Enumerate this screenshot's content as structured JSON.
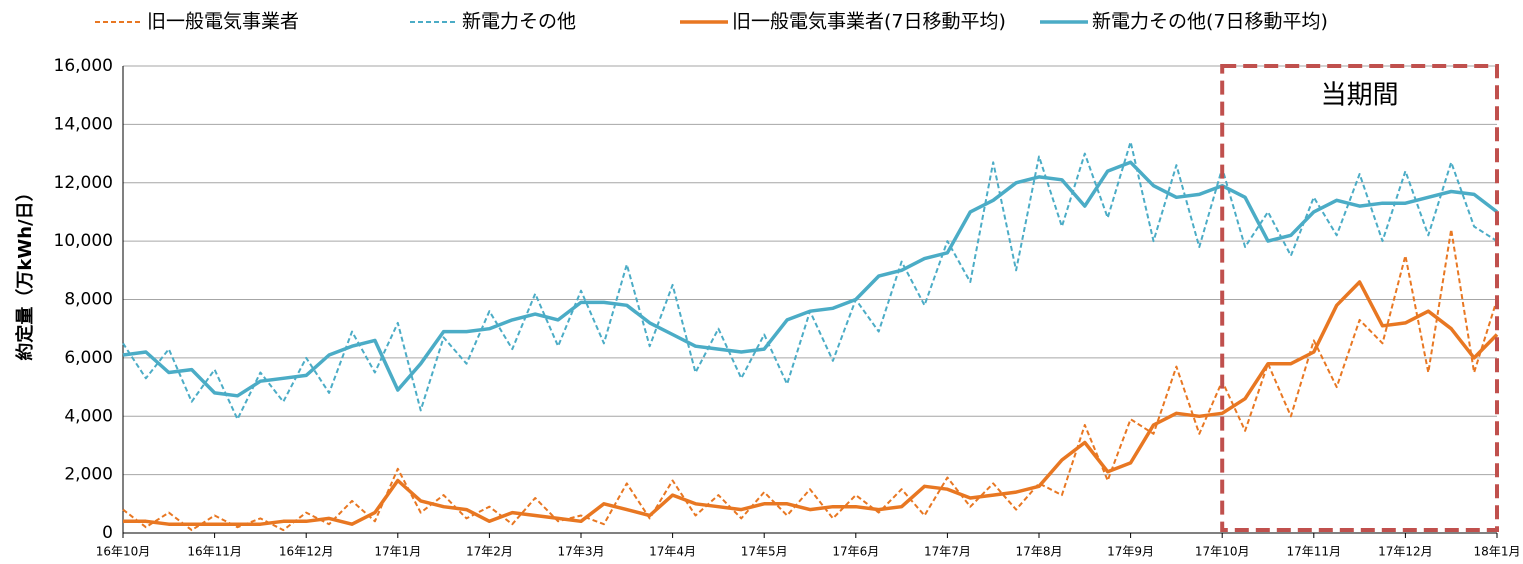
{
  "chart_data": {
    "type": "line",
    "y_label": "約定量（万kWh/日）",
    "xlim": [
      0,
      15
    ],
    "xticks": [
      {
        "value": 0,
        "label": "16年10月"
      },
      {
        "value": 1,
        "label": "16年11月"
      },
      {
        "value": 2,
        "label": "16年12月"
      },
      {
        "value": 3,
        "label": "17年1月"
      },
      {
        "value": 4,
        "label": "17年2月"
      },
      {
        "value": 5,
        "label": "17年3月"
      },
      {
        "value": 6,
        "label": "17年4月"
      },
      {
        "value": 7,
        "label": "17年5月"
      },
      {
        "value": 8,
        "label": "17年6月"
      },
      {
        "value": 9,
        "label": "17年7月"
      },
      {
        "value": 10,
        "label": "17年8月"
      },
      {
        "value": 11,
        "label": "17年9月"
      },
      {
        "value": 12,
        "label": "17年10月"
      },
      {
        "value": 13,
        "label": "17年11月"
      },
      {
        "value": 14,
        "label": "17年12月"
      },
      {
        "value": 15,
        "label": "18年1月"
      }
    ],
    "ylim": [
      0,
      16000
    ],
    "yticks": [
      {
        "value": 0,
        "label": "0"
      },
      {
        "value": 2000,
        "label": "2,000"
      },
      {
        "value": 4000,
        "label": "4,000"
      },
      {
        "value": 6000,
        "label": "6,000"
      },
      {
        "value": 8000,
        "label": "8,000"
      },
      {
        "value": 10000,
        "label": "10,000"
      },
      {
        "value": 12000,
        "label": "12,000"
      },
      {
        "value": 14000,
        "label": "14,000"
      },
      {
        "value": 16000,
        "label": "16,000"
      }
    ],
    "grid": true,
    "legend": "top",
    "highlight": {
      "text": "当期間",
      "xstart": 12,
      "xend": 15,
      "color": "#c0504d"
    },
    "x": [
      0,
      0.25,
      0.5,
      0.75,
      1,
      1.25,
      1.5,
      1.75,
      2,
      2.25,
      2.5,
      2.75,
      3,
      3.25,
      3.5,
      3.75,
      4,
      4.25,
      4.5,
      4.75,
      5,
      5.25,
      5.5,
      5.75,
      6,
      6.25,
      6.5,
      6.75,
      7,
      7.25,
      7.5,
      7.75,
      8,
      8.25,
      8.5,
      8.75,
      9,
      9.25,
      9.5,
      9.75,
      10,
      10.25,
      10.5,
      10.75,
      11,
      11.25,
      11.5,
      11.75,
      12,
      12.25,
      12.5,
      12.75,
      13,
      13.25,
      13.5,
      13.75,
      14,
      14.25,
      14.5,
      14.75,
      15
    ],
    "series": [
      {
        "name": "旧一般電気事業者",
        "color": "#e87722",
        "dashed": true,
        "width": 2,
        "values": [
          800,
          200,
          700,
          100,
          600,
          200,
          500,
          100,
          700,
          300,
          1100,
          400,
          2200,
          700,
          1300,
          500,
          900,
          300,
          1200,
          400,
          600,
          300,
          1700,
          500,
          1800,
          600,
          1300,
          500,
          1400,
          600,
          1500,
          500,
          1300,
          700,
          1500,
          600,
          1900,
          900,
          1700,
          800,
          1700,
          1300,
          3700,
          1800,
          3900,
          3400,
          5700,
          3400,
          5200,
          3500,
          5800,
          4000,
          6600,
          5000,
          7300,
          6500,
          9500,
          5500,
          10400,
          5500,
          8000
        ]
      },
      {
        "name": "新電力その他",
        "color": "#4bacc6",
        "dashed": true,
        "width": 2,
        "values": [
          6500,
          5300,
          6300,
          4500,
          5600,
          3900,
          5500,
          4500,
          6000,
          4800,
          6900,
          5500,
          7200,
          4200,
          6700,
          5800,
          7600,
          6300,
          8200,
          6400,
          8300,
          6500,
          9200,
          6400,
          8500,
          5500,
          7000,
          5300,
          6800,
          5100,
          7600,
          5900,
          8000,
          6900,
          9300,
          7800,
          10000,
          8600,
          12700,
          9000,
          12900,
          10500,
          13000,
          10800,
          13400,
          10000,
          12600,
          9800,
          12500,
          9800,
          11000,
          9500,
          11500,
          10200,
          12300,
          10000,
          12400,
          10200,
          12700,
          10500,
          10000
        ]
      },
      {
        "name": "旧一般電気事業者(7日移動平均)",
        "color": "#e87722",
        "dashed": false,
        "width": 3.5,
        "values": [
          400,
          400,
          300,
          300,
          300,
          300,
          300,
          400,
          400,
          500,
          300,
          700,
          1800,
          1100,
          900,
          800,
          400,
          700,
          600,
          500,
          400,
          1000,
          800,
          600,
          1300,
          1000,
          900,
          800,
          1000,
          1000,
          800,
          900,
          900,
          800,
          900,
          1600,
          1500,
          1200,
          1300,
          1400,
          1600,
          2500,
          3100,
          2100,
          2400,
          3700,
          4100,
          4000,
          4100,
          4600,
          5800,
          5800,
          6200,
          7800,
          8600,
          7100,
          7200,
          7600,
          7000,
          6000,
          6800
        ]
      },
      {
        "name": "新電力その他(7日移動平均)",
        "color": "#4bacc6",
        "dashed": false,
        "width": 3.5,
        "values": [
          6100,
          6200,
          5500,
          5600,
          4800,
          4700,
          5200,
          5300,
          5400,
          6100,
          6400,
          6600,
          4900,
          5800,
          6900,
          6900,
          7000,
          7300,
          7500,
          7300,
          7900,
          7900,
          7800,
          7200,
          6800,
          6400,
          6300,
          6200,
          6300,
          7300,
          7600,
          7700,
          8000,
          8800,
          9000,
          9400,
          9600,
          11000,
          11400,
          12000,
          12200,
          12100,
          11200,
          12400,
          12700,
          11900,
          11500,
          11600,
          11900,
          11500,
          10000,
          10200,
          11000,
          11400,
          11200,
          11300,
          11300,
          11500,
          11700,
          11600,
          11000
        ]
      }
    ]
  }
}
